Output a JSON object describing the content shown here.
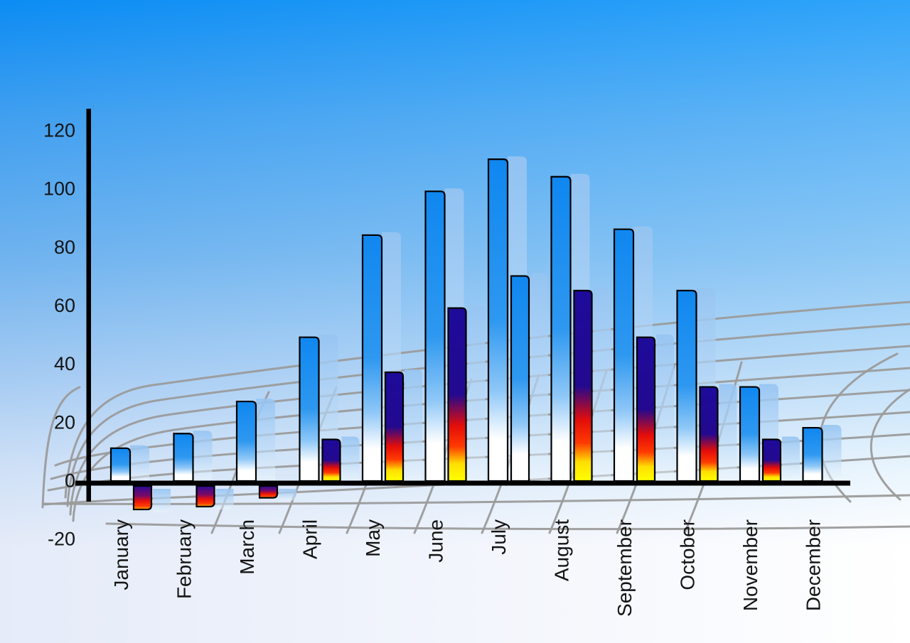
{
  "chart_data": {
    "type": "bar",
    "title": "",
    "xlabel": "",
    "ylabel": "",
    "categories": [
      "January",
      "February",
      "March",
      "April",
      "May",
      "June",
      "July",
      "August",
      "September",
      "October",
      "November",
      "December"
    ],
    "series": [
      {
        "name": "primary-blue-bars",
        "values": [
          11,
          16,
          27,
          49,
          84,
          99,
          110,
          104,
          86,
          65,
          32,
          18
        ]
      },
      {
        "name": "secondary-flame-bars",
        "values": [
          -10,
          -9,
          -6,
          14,
          37,
          59,
          70,
          65,
          49,
          32,
          14,
          null
        ]
      }
    ],
    "series2_style": [
      "flame",
      "flame",
      "flame",
      "flame",
      "flame",
      "flame",
      "blue",
      "flame",
      "flame",
      "flame",
      "flame",
      "none"
    ],
    "y_ticks": [
      "120",
      "100",
      "80",
      "60",
      "40",
      "20",
      "0",
      "-20"
    ],
    "y_tick_values": [
      120,
      100,
      80,
      60,
      40,
      20,
      0,
      -20
    ],
    "ylim": [
      -20,
      120
    ],
    "x_label_rotation": -90,
    "legend": "none",
    "grid": "gray perspective/curved ground grid behind bars",
    "effects": "each bar has a translucent light-blue duplicate offset to the right (3D shadow)"
  },
  "colors": {
    "sky_top": "#0d95f9",
    "sky_mid": "#7cc0f4",
    "sky_bottom": "#ffffff",
    "bar_blue_top": "#0f87f0",
    "bar_blue_mid": "#2e98f0",
    "bar_blue_fade": "#8ec7f7",
    "bar_blue_bottom": "#ffffff",
    "flame_navy": "#1e0b9b",
    "flame_purple": "#7a0a66",
    "flame_red": "#e30d0a",
    "flame_orange": "#ff3a00",
    "flame_yellow": "#ffff00",
    "shadow_blue_rgba": "rgba(150,196,242,0.9)",
    "grid_line": "#9b9b9b",
    "axis": "#000000",
    "label_text": "#141414"
  }
}
